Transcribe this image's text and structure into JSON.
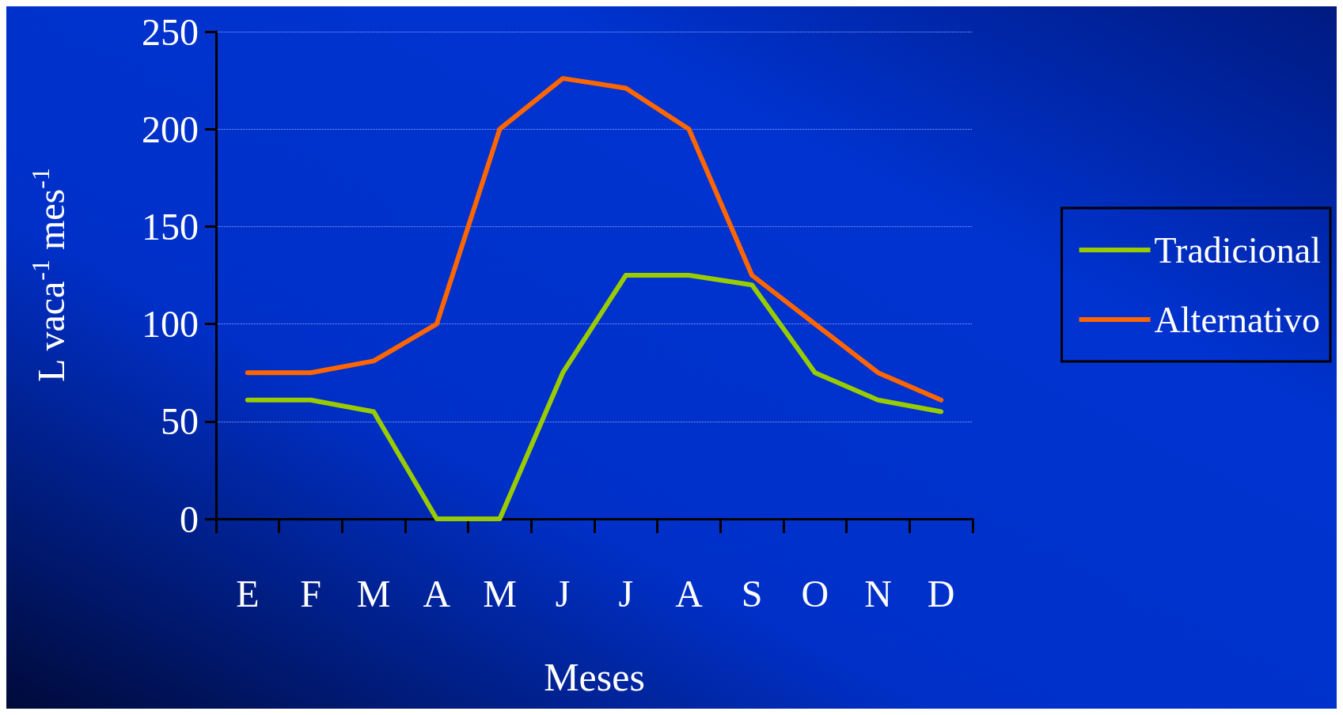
{
  "chart_data": {
    "type": "line",
    "xlabel": "Meses",
    "ylabel": "L vaca$^{-1}$ mes$^{-1}$",
    "categories": [
      "E",
      "F",
      "M",
      "A",
      "M",
      "J",
      "J",
      "A",
      "S",
      "O",
      "N",
      "D"
    ],
    "series": [
      {
        "name": "Tradicional",
        "color": "#99cc00",
        "values": [
          61,
          61,
          55,
          0,
          0,
          75,
          125,
          125,
          120,
          75,
          61,
          55
        ]
      },
      {
        "name": "Alternativo",
        "color": "#ff6600",
        "values": [
          75,
          75,
          81,
          100,
          200,
          226,
          221,
          200,
          125,
          100,
          75,
          61
        ]
      }
    ],
    "ylim": [
      0,
      250
    ],
    "yticks": [
      0,
      50,
      100,
      150,
      200,
      250
    ],
    "grid": "y",
    "legend": "right",
    "marker": "none",
    "line_style": "solid"
  }
}
